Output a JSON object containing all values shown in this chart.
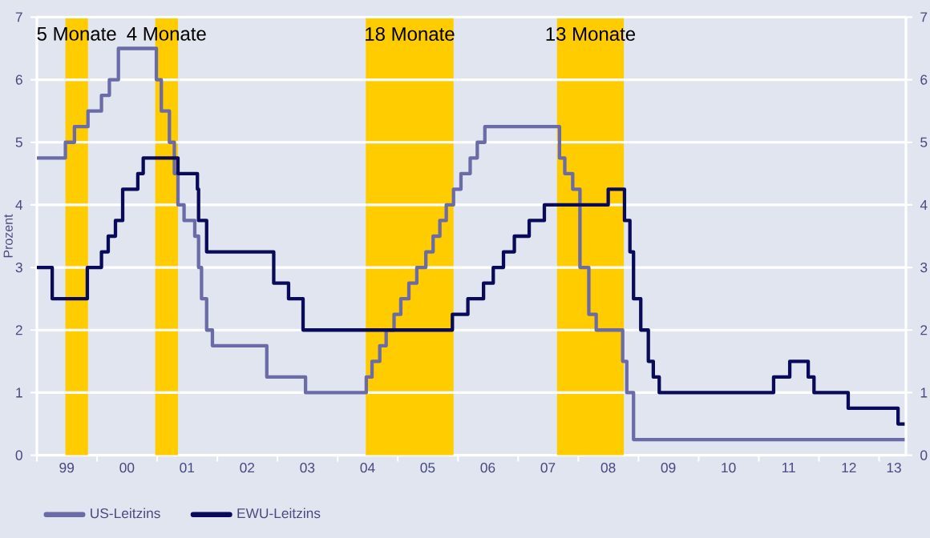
{
  "chart_data": {
    "type": "step",
    "ylabel": "Prozent",
    "xlim": [
      "1999-01-01",
      "2013-06-13"
    ],
    "xticks": [
      {
        "value": "1999-01-01",
        "label": null
      },
      {
        "value": "1999-07-01",
        "label": "99"
      },
      {
        "value": "2000-01-01",
        "label": null
      },
      {
        "value": "2000-07-01",
        "label": "00"
      },
      {
        "value": "2001-01-01",
        "label": null
      },
      {
        "value": "2001-07-01",
        "label": "01"
      },
      {
        "value": "2002-01-01",
        "label": null
      },
      {
        "value": "2002-07-01",
        "label": "02"
      },
      {
        "value": "2003-01-01",
        "label": null
      },
      {
        "value": "2003-07-01",
        "label": "03"
      },
      {
        "value": "2004-01-01",
        "label": null
      },
      {
        "value": "2004-07-01",
        "label": "04"
      },
      {
        "value": "2005-01-01",
        "label": null
      },
      {
        "value": "2005-07-01",
        "label": "05"
      },
      {
        "value": "2006-01-01",
        "label": null
      },
      {
        "value": "2006-07-01",
        "label": "06"
      },
      {
        "value": "2007-01-01",
        "label": null
      },
      {
        "value": "2007-07-01",
        "label": "07"
      },
      {
        "value": "2008-01-01",
        "label": null
      },
      {
        "value": "2008-07-01",
        "label": "08"
      },
      {
        "value": "2009-01-01",
        "label": null
      },
      {
        "value": "2009-07-01",
        "label": "09"
      },
      {
        "value": "2010-01-01",
        "label": null
      },
      {
        "value": "2010-07-01",
        "label": "10"
      },
      {
        "value": "2011-01-01",
        "label": null
      },
      {
        "value": "2011-07-01",
        "label": "11"
      },
      {
        "value": "2012-01-01",
        "label": null
      },
      {
        "value": "2012-07-01",
        "label": "12"
      },
      {
        "value": "2013-01-01",
        "label": null
      },
      {
        "value": "2013-04-01",
        "label": "13"
      }
    ],
    "ylim": [
      0,
      7
    ],
    "yticks": [
      0,
      1,
      2,
      3,
      4,
      5,
      6,
      7
    ],
    "y2lim": [
      0,
      7
    ],
    "y2ticks": [
      0,
      1,
      2,
      3,
      4,
      5,
      6,
      7
    ],
    "grid": "y",
    "legend": "bottom left",
    "bands": [
      {
        "axis": "x",
        "from": "1999-06-23",
        "to": "1999-11-07",
        "label": "5 Monate",
        "color": "#ffcc00"
      },
      {
        "axis": "x",
        "from": "2000-12-20",
        "to": "2001-05-07",
        "label": "4 Monate",
        "color": "#ffcc00"
      },
      {
        "axis": "x",
        "from": "2004-06-20",
        "to": "2005-12-05",
        "label": "18 Monate",
        "color": "#ffcc00"
      },
      {
        "axis": "x",
        "from": "2007-08-25",
        "to": "2008-10-04",
        "label": "13 Monate",
        "color": "#ffcc00"
      }
    ],
    "series": [
      {
        "name": "US-Leitzins",
        "color": "#6b6ba8",
        "x": [
          "1999-01-01",
          "1999-06-23",
          "1999-08-17",
          "1999-11-07",
          "2000-01-28",
          "2000-03-16",
          "2000-05-10",
          "2000-12-27",
          "2001-01-26",
          "2001-03-16",
          "2001-04-15",
          "2001-05-07",
          "2001-06-13",
          "2001-08-17",
          "2001-09-09",
          "2001-09-27",
          "2001-10-28",
          "2001-12-02",
          "2002-10-28",
          "2003-06-20",
          "2004-06-23",
          "2004-07-28",
          "2004-09-13",
          "2004-10-22",
          "2004-12-09",
          "2005-01-19",
          "2005-03-09",
          "2005-04-26",
          "2005-06-20",
          "2005-08-03",
          "2005-09-13",
          "2005-10-22",
          "2005-12-05",
          "2006-01-19",
          "2006-03-16",
          "2006-04-28",
          "2006-06-13",
          "2007-09-09",
          "2007-10-11",
          "2007-11-28",
          "2008-01-11",
          "2008-03-05",
          "2008-04-19",
          "2008-09-27",
          "2008-10-22",
          "2008-12-02",
          "2013-06-13"
        ],
        "values": [
          4.75,
          5.0,
          5.25,
          5.5,
          5.75,
          6.0,
          6.5,
          6.0,
          5.5,
          5.0,
          4.5,
          4.0,
          3.75,
          3.5,
          3.0,
          2.5,
          2.0,
          1.75,
          1.25,
          1.0,
          1.25,
          1.5,
          1.75,
          2.0,
          2.25,
          2.5,
          2.75,
          3.0,
          3.25,
          3.5,
          3.75,
          4.0,
          4.25,
          4.5,
          4.75,
          5.0,
          5.25,
          4.75,
          4.5,
          4.25,
          3.0,
          2.25,
          2.0,
          1.5,
          1.0,
          0.25,
          0.25
        ]
      },
      {
        "name": "EWU-Leitzins",
        "color": "#0a0a5a",
        "x": [
          "1999-01-01",
          "1999-04-04",
          "1999-11-03",
          "2000-01-28",
          "2000-03-09",
          "2000-04-22",
          "2000-06-05",
          "2000-09-05",
          "2000-10-08",
          "2001-05-07",
          "2001-09-02",
          "2001-09-09",
          "2001-10-28",
          "2002-12-09",
          "2003-03-09",
          "2003-06-05",
          "2005-11-28",
          "2006-03-02",
          "2006-06-05",
          "2006-08-03",
          "2006-10-04",
          "2006-12-09",
          "2007-03-09",
          "2007-06-09",
          "2008-07-01",
          "2008-10-08",
          "2008-11-10",
          "2008-12-02",
          "2009-01-15",
          "2009-03-02",
          "2009-04-01",
          "2009-05-07",
          "2011-04-01",
          "2011-07-08",
          "2011-10-28",
          "2011-12-02",
          "2012-06-27",
          "2013-04-26",
          "2013-06-13"
        ],
        "values": [
          3.0,
          2.5,
          3.0,
          3.25,
          3.5,
          3.75,
          4.25,
          4.5,
          4.75,
          4.5,
          4.25,
          3.75,
          3.25,
          2.75,
          2.5,
          2.0,
          2.25,
          2.5,
          2.75,
          3.0,
          3.25,
          3.5,
          3.75,
          4.0,
          4.25,
          3.75,
          3.25,
          2.5,
          2.0,
          1.5,
          1.25,
          1.0,
          1.25,
          1.5,
          1.25,
          1.0,
          0.75,
          0.5,
          0.5
        ]
      }
    ]
  }
}
